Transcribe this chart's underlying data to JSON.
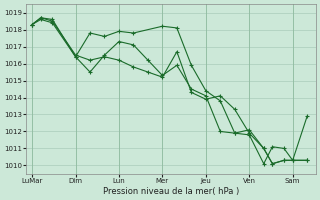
{
  "background_color": "#cce8d8",
  "grid_color": "#aaccbb",
  "line_color": "#1a6b2a",
  "x_labels": [
    "LuMar",
    "Dim",
    "Lun",
    "Mer",
    "Jeu",
    "Ven",
    "Sam"
  ],
  "xlabel": "Pression niveau de la mer( hPa )",
  "ylim": [
    1009.5,
    1019.5
  ],
  "yticks": [
    1010,
    1011,
    1012,
    1013,
    1014,
    1015,
    1016,
    1017,
    1018,
    1019
  ],
  "series1_x": [
    0,
    0.3,
    0.7,
    1.5,
    2.0,
    2.5,
    3.0,
    3.5,
    4.5,
    5.0,
    5.5,
    6.0,
    6.5,
    7.0,
    7.5,
    8.0,
    8.3,
    8.7,
    9.0,
    9.5
  ],
  "series1_y": [
    1018.3,
    1018.7,
    1018.6,
    1016.4,
    1017.8,
    1017.6,
    1017.9,
    1017.8,
    1018.2,
    1018.1,
    1015.9,
    1014.4,
    1013.8,
    1011.9,
    1011.8,
    1010.1,
    1011.1,
    1011.0,
    1010.3,
    1012.9
  ],
  "series2_x": [
    0,
    0.3,
    0.7,
    1.5,
    2.0,
    2.5,
    3.0,
    3.5,
    4.0,
    4.5,
    5.0,
    5.5,
    6.0,
    6.5,
    7.0,
    7.5,
    8.0,
    8.3,
    8.7,
    9.0,
    9.5
  ],
  "series2_y": [
    1018.3,
    1018.7,
    1018.5,
    1016.5,
    1016.2,
    1016.4,
    1016.2,
    1015.8,
    1015.5,
    1015.2,
    1016.7,
    1014.3,
    1013.9,
    1014.1,
    1013.3,
    1011.9,
    1011.0,
    1010.1,
    1010.3,
    1010.3,
    1010.3
  ],
  "series3_x": [
    0,
    0.3,
    0.7,
    1.5,
    2.0,
    2.5,
    3.0,
    3.5,
    4.0,
    4.5,
    5.0,
    5.5,
    6.0,
    6.5,
    7.0,
    7.5,
    8.0,
    8.3,
    8.7,
    9.0,
    9.5
  ],
  "series3_y": [
    1018.3,
    1018.6,
    1018.4,
    1016.4,
    1015.5,
    1016.5,
    1017.3,
    1017.1,
    1016.2,
    1015.3,
    1015.9,
    1014.5,
    1014.1,
    1012.0,
    1011.9,
    1012.1,
    1011.0,
    1010.1,
    1010.3,
    1010.3,
    1010.3
  ],
  "x_tick_positions": [
    0,
    1.5,
    3.0,
    4.5,
    6.0,
    7.5,
    9.0
  ],
  "xlim": [
    -0.2,
    9.8
  ]
}
